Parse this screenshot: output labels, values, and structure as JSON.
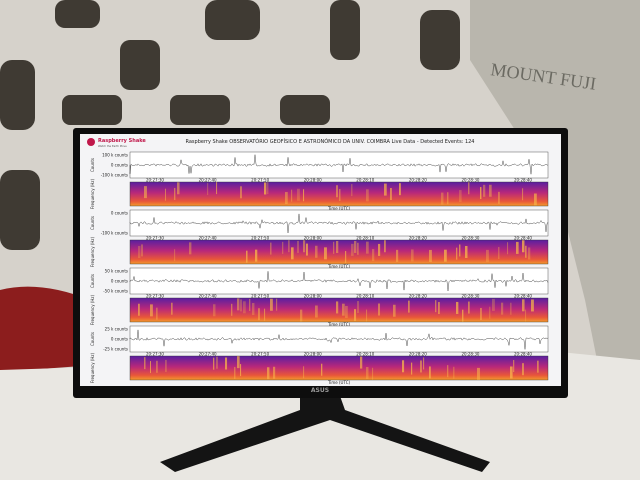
{
  "header": {
    "logo": "Raspberry Shake",
    "tagline": "Watch the Earth Move",
    "title": "Raspberry Shake OBSERVATÓRIO GEOFÍSICO E ASTRONÓMICO DA UNIV. COIMBRA Live Data - Detected Events: 124"
  },
  "panels": [
    {
      "yticks": [
        "100 k counts",
        "0 counts",
        "-100 k counts"
      ],
      "ylabel": "Counts",
      "spec_label": "Frequency (Hz)",
      "xlabel": "Time (UTC)",
      "xticks": [
        "20:27:30",
        "20:27:40",
        "20:27:50",
        "20:28:00",
        "20:28:10",
        "20:28:20",
        "20:28:30",
        "20:28:40"
      ]
    },
    {
      "yticks": [
        "0 counts",
        "-100 k counts"
      ],
      "ylabel": "Counts",
      "spec_label": "Frequency (Hz)",
      "xlabel": "Time (UTC)",
      "xticks": [
        "20:27:30",
        "20:27:40",
        "20:27:50",
        "20:28:00",
        "20:28:10",
        "20:28:20",
        "20:28:30",
        "20:28:40"
      ]
    },
    {
      "yticks": [
        "50 k counts",
        "0 counts",
        "-50 k counts"
      ],
      "ylabel": "Counts",
      "spec_label": "Frequency (Hz)",
      "xlabel": "Time (UTC)",
      "xticks": [
        "20:27:30",
        "20:27:40",
        "20:27:50",
        "20:28:00",
        "20:28:10",
        "20:28:20",
        "20:28:30",
        "20:28:40"
      ]
    },
    {
      "yticks": [
        "25 k counts",
        "0 counts",
        "-25 k counts"
      ],
      "ylabel": "Counts",
      "spec_label": "Frequency (Hz)",
      "xlabel": "Time (UTC)",
      "xticks": [
        "20:27:30",
        "20:27:40",
        "20:27:50",
        "20:28:00",
        "20:28:10",
        "20:28:20",
        "20:28:30",
        "20:28:40"
      ]
    }
  ],
  "monitor_brand": "ASUS",
  "shirt_text": "MOUNT FUJI"
}
